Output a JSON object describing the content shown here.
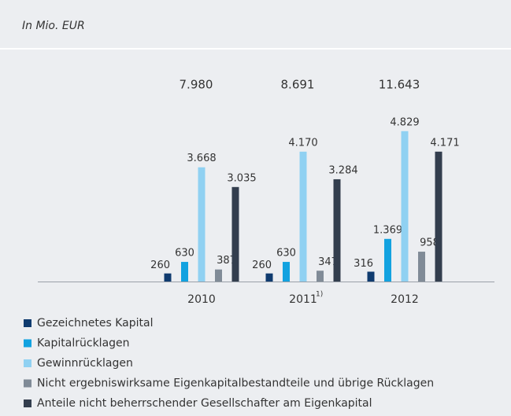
{
  "chart_data": {
    "type": "bar",
    "subtitle": "In Mio. EUR",
    "categories": [
      "2010",
      "2011",
      "2012"
    ],
    "category_footnotes": [
      null,
      "1)",
      null
    ],
    "totals": [
      7980,
      8691,
      11643
    ],
    "total_labels": [
      "7.980",
      "8.691",
      "11.643"
    ],
    "series": [
      {
        "name": "Gezeichnetes Kapital",
        "color": "#0f3b6f",
        "values": [
          260,
          260,
          316
        ],
        "value_labels": [
          "260",
          "260",
          "316"
        ]
      },
      {
        "name": "Kapitalrücklagen",
        "color": "#12a2e0",
        "values": [
          630,
          630,
          1369
        ],
        "value_labels": [
          "630",
          "630",
          "1.369"
        ]
      },
      {
        "name": "Gewinnrücklagen",
        "color": "#90d1f2",
        "values": [
          3668,
          4170,
          4829
        ],
        "value_labels": [
          "3.668",
          "4.170",
          "4.829"
        ]
      },
      {
        "name": "Nicht ergebniswirksame Eigenkapitalbestandteile und übrige Rücklagen",
        "color": "#808b97",
        "values": [
          387,
          347,
          958
        ],
        "value_labels": [
          "387",
          "347",
          "958"
        ]
      },
      {
        "name": "Anteile nicht beherrschender Gesellschafter am Eigenkapital",
        "color": "#333e4e",
        "values": [
          3035,
          3284,
          4171
        ],
        "value_labels": [
          "3.035",
          "3.284",
          "4.171"
        ]
      }
    ]
  }
}
